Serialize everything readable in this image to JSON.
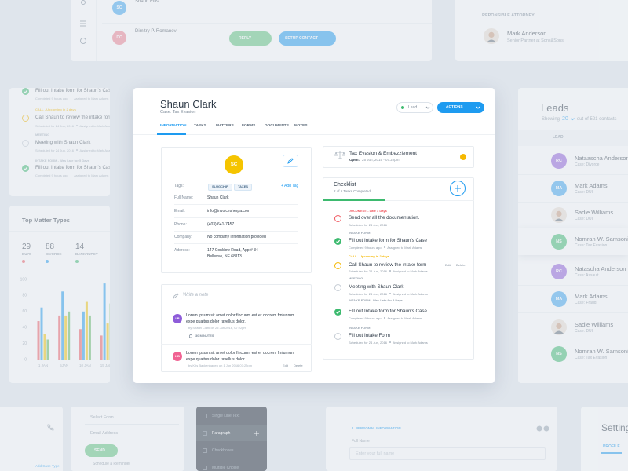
{
  "top_contacts_card": {
    "contacts": [
      {
        "initials": "SC",
        "color": "#3aa3f0",
        "name": "Shaun Ellis"
      },
      {
        "initials": "DC",
        "color": "#f07f8f",
        "name": "Dimitry P. Romanov"
      }
    ],
    "reply": "REPLY",
    "setup_contact": "SETUP CONTACT"
  },
  "attorney_card": {
    "label": "REPONSIBLE ATTORNEY:",
    "name": "Mark Anderson",
    "title": "Senior Partner at Sons&Sons"
  },
  "tasks_card": {
    "items": [
      {
        "title": "Fill out Intake form for Shaun's Case",
        "meta": [
          "Completed 9 hours ago",
          "Assigned to Mark Adams"
        ],
        "color": "#3dba6f",
        "completed": true
      },
      {
        "tag": "CALL - Upcoming in 2 days",
        "tag_color": "#f5b800",
        "title": "Call Shaun to review the intake form",
        "meta": [
          "Scheduled for 24 Jun, 2016",
          "Assigned to Mark Adams"
        ],
        "color": "#f5b800",
        "completed": false
      },
      {
        "tag": "MEETING",
        "tag_color": "#9aa5b1",
        "title": "Meeting with Shaun Clark",
        "meta": [
          "Scheduled for 24 Jun, 2016",
          "Assigned to Mark Adams"
        ],
        "color": "#c5ccd4",
        "completed": false
      },
      {
        "tag": "INTAKE FORM - Was Late for 5 Days",
        "tag_color": "#9aa5b1",
        "title": "Fill out Intake form for Shaun's Case",
        "meta": [
          "Completed 9 hours ago",
          "Assigned to Mark Adams"
        ],
        "color": "#3dba6f",
        "completed": true
      }
    ]
  },
  "matter_types": {
    "title": "Top Matter Types",
    "stats": [
      {
        "value": 29,
        "label": "DUI'S",
        "color": "#f0565e"
      },
      {
        "value": 88,
        "label": "DIVORCE",
        "color": "#1e9bf0"
      },
      {
        "value": 14,
        "label": "BANKRUPCY",
        "color": "#3dba6f"
      }
    ]
  },
  "chart_data": {
    "type": "bar",
    "categories": [
      "1 JAN",
      "5JAN",
      "10 JAN",
      "15 JAN"
    ],
    "series": [
      {
        "color": "#f0565e",
        "values": [
          48,
          55,
          38,
          30
        ]
      },
      {
        "color": "#1e9bf0",
        "values": [
          65,
          85,
          60,
          95
        ]
      },
      {
        "color": "#f5c400",
        "values": [
          32,
          55,
          72,
          45
        ]
      },
      {
        "color": "#5cb85c",
        "values": [
          25,
          60,
          55,
          70
        ]
      }
    ],
    "ylim": [
      0,
      100
    ],
    "yticks": [
      0,
      20,
      40,
      60,
      80,
      100
    ]
  },
  "contact": {
    "name": "Shaun Clark",
    "case": "Case: Tax Evasion",
    "status": "Lead",
    "actions": "ACTIONS",
    "tabs": [
      "INFORMATION",
      "TASKS",
      "MATTERS",
      "FORMS",
      "DOCUMENTS",
      "NOTES"
    ],
    "initials": "SC",
    "tags_label": "Tags:",
    "tags": [
      "SLUGCHIP",
      "TAXES"
    ],
    "add_tag": "+ Add Tag",
    "fields": [
      {
        "label": "Full Name:",
        "value": "Shaun Clark"
      },
      {
        "label": "Email:",
        "value": "info@invoicesherpa.com"
      },
      {
        "label": "Phone:",
        "value": "(403) 641-7457"
      },
      {
        "label": "Company:",
        "value": "No company information provided"
      }
    ],
    "address": {
      "label": "Address:",
      "lines": [
        "147 Conklow Road, App # 34",
        "Bellevue, NE 68113"
      ]
    },
    "note_placeholder": "Write a note",
    "notes": [
      {
        "initials": "LB",
        "color": "#8e5cd9",
        "text": "Lorem ipsum sit amet dolor fincunm est er docrem fmiunrum expe quaitus dolor ravellus dolor.",
        "meta": "by Shaun Clark on 25 Jun 2016, 07:22pm",
        "reminder": "30 MINUTES"
      },
      {
        "initials": "KB",
        "color": "#f06292",
        "text": "Lorem ipsum sit amet dolor fincunm est er docrem fmiunrum expe quaitus dolor ravellus dolor.",
        "meta": "by Kris Backenhagen on 1 Jun 2016 07:22pm",
        "actions": [
          "Edit",
          "Delete"
        ]
      }
    ],
    "matter": {
      "title": "Tax Evasion & Embezzlement",
      "open_label": "Open:",
      "opened": "25 Jun, 2015 - 07:22pm"
    },
    "checklist": {
      "title": "Checklist",
      "progress": "2 of 6 Tasks Completed",
      "items": [
        {
          "tag": "DOCUMENT - Late 3 Days",
          "tag_color": "#f0565e",
          "title": "Send over all the documentation.",
          "meta": [
            "Scheduled for 24 Jun, 2016"
          ],
          "color": "#f0565e",
          "completed": false
        },
        {
          "tag": "INTAKE FORM",
          "tag_color": "#9aa5b1",
          "title": "Fill out Intake form for Shaun's Case",
          "meta": [
            "Completed 9 hours ago",
            "Assigned to Mark Adams"
          ],
          "color": "#3dba6f",
          "completed": true
        },
        {
          "tag": "CALL - Upcoming in 2 days",
          "tag_color": "#f5b800",
          "title": "Call Shaun to review the intake form",
          "meta": [
            "Scheduled for 24 Jun, 2016",
            "Assigned to Mark Adams"
          ],
          "color": "#f5b800",
          "completed": false,
          "actions": [
            "Edit",
            "Delete"
          ]
        },
        {
          "tag": "MEETING",
          "tag_color": "#9aa5b1",
          "title": "Meeting with Shaun Clark",
          "meta": [
            "Scheduled for 24 Jun, 2016",
            "Assigned to Mark Adams"
          ],
          "color": "#c5ccd4",
          "completed": false
        },
        {
          "tag": "INTAKE FORM - Was Late for 5 Days",
          "tag_color": "#9aa5b1",
          "title": "Fill out Intake form for Shaun's Case",
          "meta": [
            "Completed 9 hours ago",
            "Assigned to Mark Adams"
          ],
          "color": "#3dba6f",
          "completed": true
        },
        {
          "tag": "INTAKE FORM",
          "tag_color": "#9aa5b1",
          "title": "Fill out Intake Form",
          "meta": [
            "Scheduled for 24 Jun, 2016",
            "Assigned to Mark Adams"
          ],
          "color": "#c5ccd4",
          "completed": false
        }
      ]
    }
  },
  "leads": {
    "title": "Leads",
    "showing": "Showing",
    "count": "20",
    "total": "out of 521 contacts",
    "column": "LEAD",
    "items": [
      {
        "initials": "RC",
        "color": "#8e5cd9",
        "name": "Nataascha Anderson",
        "case": "Case: Divorce"
      },
      {
        "initials": "MA",
        "color": "#3aa3f0",
        "name": "Mark Adams",
        "case": "Case: DUI"
      },
      {
        "name": "Sadie Williams",
        "case": "Case: DUI"
      },
      {
        "initials": "NS",
        "color": "#3dba6f",
        "name": "Nomran W. Samsonite",
        "case": "Case: Tax Evasion",
        "selected": true
      },
      {
        "initials": "RC",
        "color": "#8e5cd9",
        "name": "Natascha Anderson",
        "case": "Case: Assault"
      },
      {
        "initials": "MA",
        "color": "#3aa3f0",
        "name": "Mark Adams",
        "case": "Case: Fraud"
      },
      {
        "name": "Sadie Williams",
        "case": "Case: DUI"
      },
      {
        "initials": "NS",
        "color": "#3dba6f",
        "name": "Nomran W. Samsonite",
        "case": "Case: Tax Evasion"
      }
    ]
  },
  "case_type_link": "Add Case Type",
  "form_card": {
    "select": "Select Form",
    "email": "Email Address",
    "send": "SEND",
    "reminder": "Schedule a Reminder"
  },
  "field_types": {
    "items": [
      {
        "label": "Single Line Text"
      },
      {
        "label": "Paragraph",
        "active": true
      },
      {
        "label": "Checkboxes"
      },
      {
        "label": "Multiple Choice"
      }
    ]
  },
  "form_preview": {
    "section": "1. PERSONAL INFORMATION",
    "label": "Full Name",
    "placeholder": "Enter your full name"
  },
  "settings": {
    "title": "Settings",
    "tab": "PROFILE"
  }
}
